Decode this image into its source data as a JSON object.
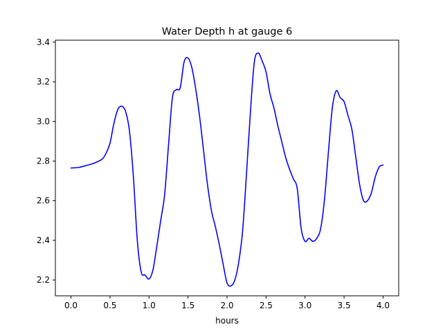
{
  "chart_data": {
    "type": "line",
    "title": "Water Depth h at gauge 6",
    "xlabel": "hours",
    "ylabel": "",
    "xlim": [
      -0.2,
      4.2
    ],
    "ylim": [
      2.12,
      3.41
    ],
    "xticks": [
      0.0,
      0.5,
      1.0,
      1.5,
      2.0,
      2.5,
      3.0,
      3.5,
      4.0
    ],
    "xtick_labels": [
      "0.0",
      "0.5",
      "1.0",
      "1.5",
      "2.0",
      "2.5",
      "3.0",
      "3.5",
      "4.0"
    ],
    "yticks": [
      2.2,
      2.4,
      2.6,
      2.8,
      3.0,
      3.2,
      3.4
    ],
    "ytick_labels": [
      "2.2",
      "2.4",
      "2.6",
      "2.8",
      "3.0",
      "3.2",
      "3.4"
    ],
    "grid": false,
    "series": [
      {
        "color": "#0000ff",
        "x": [
          0.0,
          0.1,
          0.2,
          0.3,
          0.4,
          0.45,
          0.5,
          0.55,
          0.6,
          0.65,
          0.7,
          0.75,
          0.8,
          0.85,
          0.9,
          0.95,
          1.0,
          1.05,
          1.1,
          1.15,
          1.2,
          1.25,
          1.3,
          1.35,
          1.4,
          1.45,
          1.5,
          1.55,
          1.6,
          1.65,
          1.7,
          1.75,
          1.8,
          1.85,
          1.9,
          1.95,
          2.0,
          2.05,
          2.1,
          2.15,
          2.2,
          2.25,
          2.3,
          2.35,
          2.4,
          2.45,
          2.5,
          2.55,
          2.6,
          2.65,
          2.7,
          2.75,
          2.8,
          2.85,
          2.9,
          2.95,
          3.0,
          3.05,
          3.1,
          3.15,
          3.2,
          3.25,
          3.3,
          3.35,
          3.4,
          3.45,
          3.5,
          3.55,
          3.6,
          3.65,
          3.7,
          3.75,
          3.8,
          3.85,
          3.9,
          3.95,
          4.0
        ],
        "y": [
          2.765,
          2.768,
          2.778,
          2.79,
          2.81,
          2.84,
          2.89,
          2.99,
          3.06,
          3.077,
          3.05,
          2.95,
          2.72,
          2.4,
          2.24,
          2.225,
          2.205,
          2.25,
          2.37,
          2.5,
          2.63,
          2.88,
          3.12,
          3.16,
          3.17,
          3.3,
          3.32,
          3.27,
          3.16,
          3.02,
          2.85,
          2.68,
          2.55,
          2.47,
          2.38,
          2.28,
          2.185,
          2.17,
          2.2,
          2.29,
          2.45,
          2.74,
          3.05,
          3.3,
          3.345,
          3.305,
          3.25,
          3.14,
          3.07,
          2.98,
          2.9,
          2.82,
          2.76,
          2.71,
          2.66,
          2.46,
          2.395,
          2.41,
          2.395,
          2.41,
          2.46,
          2.61,
          2.85,
          3.07,
          3.155,
          3.12,
          3.1,
          3.03,
          2.96,
          2.82,
          2.68,
          2.6,
          2.6,
          2.64,
          2.72,
          2.77,
          2.78
        ]
      }
    ]
  }
}
